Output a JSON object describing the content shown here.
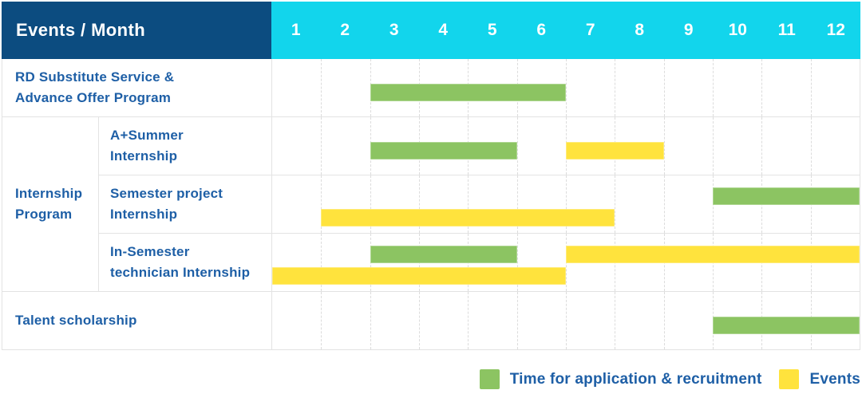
{
  "header": {
    "title": "Events / Month",
    "months": [
      "1",
      "2",
      "3",
      "4",
      "5",
      "6",
      "7",
      "8",
      "9",
      "10",
      "11",
      "12"
    ]
  },
  "legend": {
    "items": [
      {
        "key": "green",
        "label": "Time for application & recruitment"
      },
      {
        "key": "yellow",
        "label": "Events"
      }
    ]
  },
  "colors": {
    "navy": "#0C4C80",
    "cyan": "#12D5EC",
    "blue_text": "#1E5FA6",
    "green": "#8CC462",
    "yellow": "#FFE33D",
    "grid": "#E3E3E3",
    "grid_dash": "#DCDCDC"
  },
  "chart_data": {
    "type": "table",
    "subtype": "gantt-timeline",
    "title": "Events / Month",
    "x_axis": {
      "label": "Month",
      "ticks": [
        1,
        2,
        3,
        4,
        5,
        6,
        7,
        8,
        9,
        10,
        11,
        12
      ],
      "range": [
        1,
        12
      ]
    },
    "legend": [
      {
        "color_key": "green",
        "label": "Time for application & recruitment"
      },
      {
        "color_key": "yellow",
        "label": "Events"
      }
    ],
    "rows": [
      {
        "label": "RD Substitute Service & Advance Offer Program",
        "label_lines": [
          "RD Substitute Service &",
          "Advance Offer Program"
        ],
        "group": null,
        "lanes": 1,
        "bars": [
          {
            "series": "Time for application & recruitment",
            "color_key": "green",
            "start_month": 3,
            "end_month": 6,
            "lane": 0
          }
        ]
      },
      {
        "label": "A+Summer Internship",
        "label_lines": [
          "A+Summer",
          "Internship"
        ],
        "group": "Internship Program",
        "group_label_lines": [
          "Internship",
          "Program"
        ],
        "group_span": 3,
        "lanes": 1,
        "bars": [
          {
            "series": "Time for application & recruitment",
            "color_key": "green",
            "start_month": 3,
            "end_month": 5,
            "lane": 0
          },
          {
            "series": "Events",
            "color_key": "yellow",
            "start_month": 7,
            "end_month": 8,
            "lane": 0
          }
        ]
      },
      {
        "label": "Semester project Internship",
        "label_lines": [
          "Semester project",
          "Internship"
        ],
        "group": "Internship Program",
        "lanes": 2,
        "bars": [
          {
            "series": "Time for application & recruitment",
            "color_key": "green",
            "start_month": 10,
            "end_month": 12,
            "lane": 0
          },
          {
            "series": "Events",
            "color_key": "yellow",
            "start_month": 2,
            "end_month": 7,
            "lane": 1
          }
        ]
      },
      {
        "label": "In-Semester technician Internship",
        "label_lines": [
          "In-Semester",
          "technician Internship"
        ],
        "group": "Internship Program",
        "lanes": 2,
        "bars": [
          {
            "series": "Time for application & recruitment",
            "color_key": "green",
            "start_month": 3,
            "end_month": 5,
            "lane": 0
          },
          {
            "series": "Events",
            "color_key": "yellow",
            "start_month": 7,
            "end_month": 12,
            "lane": 0
          },
          {
            "series": "Events",
            "color_key": "yellow",
            "start_month": 1,
            "end_month": 6,
            "lane": 1
          }
        ]
      },
      {
        "label": "Talent scholarship",
        "label_lines": [
          "Talent scholarship"
        ],
        "group": null,
        "lanes": 1,
        "bars": [
          {
            "series": "Time for application & recruitment",
            "color_key": "green",
            "start_month": 10,
            "end_month": 12,
            "lane": 0
          }
        ]
      }
    ]
  }
}
